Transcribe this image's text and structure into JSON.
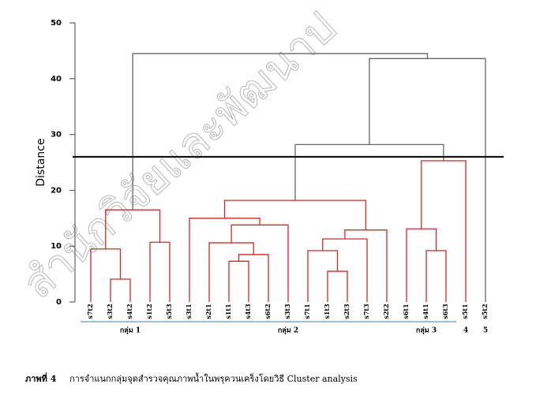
{
  "chart_data": {
    "type": "dendrogram",
    "y_label": "Distance",
    "ylim": [
      0,
      50
    ],
    "yticks": [
      0,
      10,
      20,
      30,
      40,
      50
    ],
    "leaves": [
      "s7t2",
      "s3t2",
      "s4t2",
      "s1t2",
      "s5t3",
      "s3t1",
      "s2t1",
      "s1t1",
      "s4t3",
      "s6t2",
      "s3t3",
      "s7t1",
      "s1t3",
      "s2t3",
      "s7t3",
      "s2t2",
      "s6t1",
      "s4t1",
      "s6t3",
      "s5t1",
      "s5t2"
    ],
    "merges": [
      {
        "left": 1,
        "right": 2,
        "height": 4.1
      },
      {
        "left": 0,
        "right": 21,
        "height": 9.5
      },
      {
        "left": 3,
        "right": 4,
        "height": 10.7
      },
      {
        "left": 22,
        "right": 23,
        "height": 16.5
      },
      {
        "left": 7,
        "right": 8,
        "height": 7.3
      },
      {
        "left": 25,
        "right": 9,
        "height": 8.5
      },
      {
        "left": 6,
        "right": 26,
        "height": 10.6
      },
      {
        "left": 27,
        "right": 10,
        "height": 13.8
      },
      {
        "left": 5,
        "right": 28,
        "height": 15.0
      },
      {
        "left": 12,
        "right": 13,
        "height": 5.5
      },
      {
        "left": 11,
        "right": 30,
        "height": 9.2
      },
      {
        "left": 31,
        "right": 14,
        "height": 11.3
      },
      {
        "left": 32,
        "right": 15,
        "height": 12.9
      },
      {
        "left": 29,
        "right": 33,
        "height": 18.2
      },
      {
        "left": 17,
        "right": 18,
        "height": 9.2
      },
      {
        "left": 16,
        "right": 35,
        "height": 13.1
      },
      {
        "left": 36,
        "right": 19,
        "height": 25.3
      },
      {
        "left": 34,
        "right": 37,
        "height": 28.2
      },
      {
        "left": 38,
        "right": 20,
        "height": 43.6
      },
      {
        "left": 24,
        "right": 39,
        "height": 44.5
      }
    ],
    "cut": 26,
    "below_cut_color": "#d42a2a",
    "above_cut_color": "#666666",
    "cut_color": "#000000",
    "groups": [
      {
        "label": "กลุ่ม 1",
        "start": 0,
        "end": 4
      },
      {
        "label": "กลุ่ม 2",
        "start": 5,
        "end": 15
      },
      {
        "label": "กลุ่ม 3",
        "start": 16,
        "end": 18
      },
      {
        "label": "4",
        "start": 19,
        "end": 19
      },
      {
        "label": "5",
        "start": 20,
        "end": 20
      }
    ],
    "group_line_color": "#5b9bd5",
    "watermark": "สำนักวิจัยและพัฒนาป",
    "caption_label": "ภาพที่ 4",
    "caption": "การจำแนกกลุ่มจุดสำรวจคุณภาพน้ำในพรุควนเคร็งโดยวิธี Cluster analysis"
  }
}
